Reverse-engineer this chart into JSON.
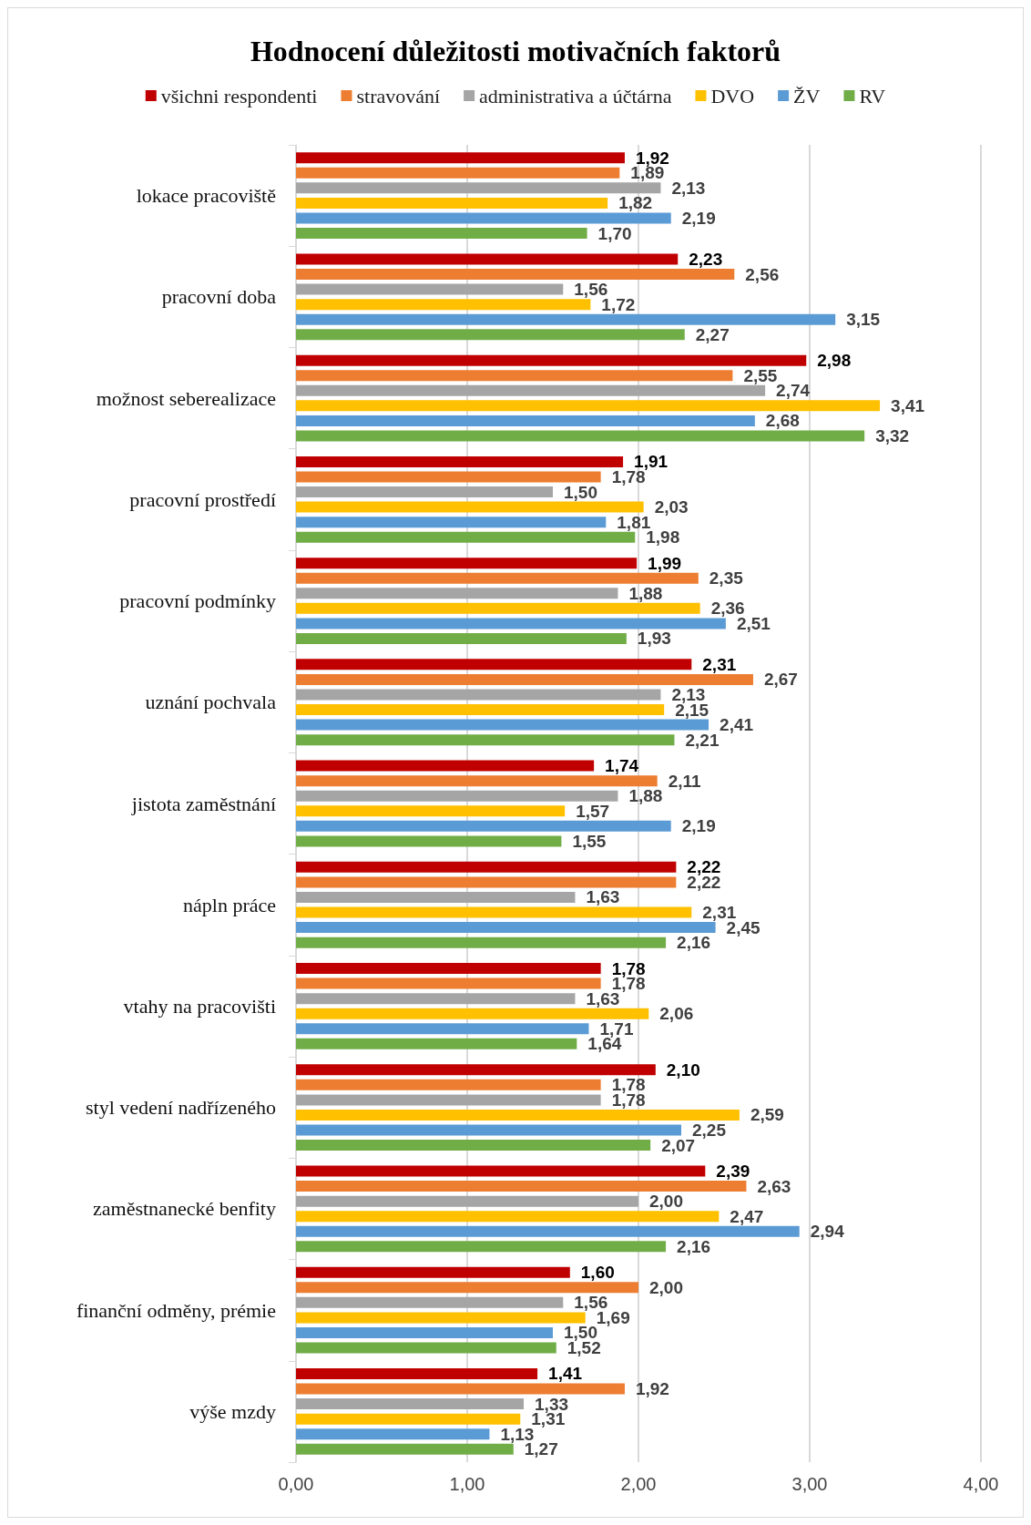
{
  "chart_data": {
    "type": "bar",
    "orientation": "horizontal",
    "title": "Hodnocení důležitosti motivačních faktorů",
    "categories": [
      "lokace pracoviště",
      "pracovní doba",
      "možnost seberealizace",
      "pracovní prostředí",
      "pracovní podmínky",
      "uznání pochvala",
      "jistota zaměstnání",
      "nápln práce",
      "vtahy na pracovišti",
      "styl vedení nadřízeného",
      "zaměstnanecké benfity",
      "finanční odměny, prémie",
      "výše mzdy"
    ],
    "series": [
      {
        "name": "všichni respondenti",
        "color": "#c00000",
        "values": [
          1.92,
          2.23,
          2.98,
          1.91,
          1.99,
          2.31,
          1.74,
          2.22,
          1.78,
          2.1,
          2.39,
          1.6,
          1.41
        ],
        "value_labels": [
          "1,92",
          "2,23",
          "2,98",
          "1,91",
          "1,99",
          "2,31",
          "1,74",
          "2,22",
          "1,78",
          "2,10",
          "2,39",
          "1,60",
          "1,41"
        ]
      },
      {
        "name": "stravování",
        "color": "#ed7d31",
        "values": [
          1.89,
          2.56,
          2.55,
          1.78,
          2.35,
          2.67,
          2.11,
          2.22,
          1.78,
          1.78,
          2.63,
          2.0,
          1.92
        ],
        "value_labels": [
          "1,89",
          "2,56",
          "2,55",
          "1,78",
          "2,35",
          "2,67",
          "2,11",
          "2,22",
          "1,78",
          "1,78",
          "2,63",
          "2,00",
          "1,92"
        ]
      },
      {
        "name": "administrativa a účtárna",
        "color": "#a5a5a5",
        "values": [
          2.13,
          1.56,
          2.74,
          1.5,
          1.88,
          2.13,
          1.88,
          1.63,
          1.63,
          1.78,
          2.0,
          1.56,
          1.33
        ],
        "value_labels": [
          "2,13",
          "1,56",
          "2,74",
          "1,50",
          "1,88",
          "2,13",
          "1,88",
          "1,63",
          "1,63",
          "1,78",
          "2,00",
          "1,56",
          "1,33"
        ]
      },
      {
        "name": "DVO",
        "color": "#ffc000",
        "values": [
          1.82,
          1.72,
          3.41,
          2.03,
          2.36,
          2.15,
          1.57,
          2.31,
          2.06,
          2.59,
          2.47,
          1.69,
          1.31
        ],
        "value_labels": [
          "1,82",
          "1,72",
          "3,41",
          "2,03",
          "2,36",
          "2,15",
          "1,57",
          "2,31",
          "2,06",
          "2,59",
          "2,47",
          "1,69",
          "1,31"
        ]
      },
      {
        "name": "ŽV",
        "color": "#5b9bd5",
        "values": [
          2.19,
          3.15,
          2.68,
          1.81,
          2.51,
          2.41,
          2.19,
          2.45,
          1.71,
          2.25,
          2.94,
          1.5,
          1.13
        ],
        "value_labels": [
          "2,19",
          "3,15",
          "2,68",
          "1,81",
          "2,51",
          "2,41",
          "2,19",
          "2,45",
          "1,71",
          "2,25",
          "2,94",
          "1,50",
          "1,13"
        ]
      },
      {
        "name": "RV",
        "color": "#70ad47",
        "values": [
          1.7,
          2.27,
          3.32,
          1.98,
          1.93,
          2.21,
          1.55,
          2.16,
          1.64,
          2.07,
          2.16,
          1.52,
          1.27
        ],
        "value_labels": [
          "1,70",
          "2,27",
          "3,32",
          "1,98",
          "1,93",
          "2,21",
          "1,55",
          "2,16",
          "1,64",
          "2,07",
          "2,16",
          "1,52",
          "1,27"
        ]
      }
    ],
    "xlim": [
      0,
      4
    ],
    "xticks": [
      {
        "value": 0,
        "label": "0,00"
      },
      {
        "value": 1,
        "label": "1,00"
      },
      {
        "value": 2,
        "label": "2,00"
      },
      {
        "value": 3,
        "label": "3,00"
      },
      {
        "value": 4,
        "label": "4,00"
      }
    ],
    "grid": "x",
    "legend": "top"
  }
}
